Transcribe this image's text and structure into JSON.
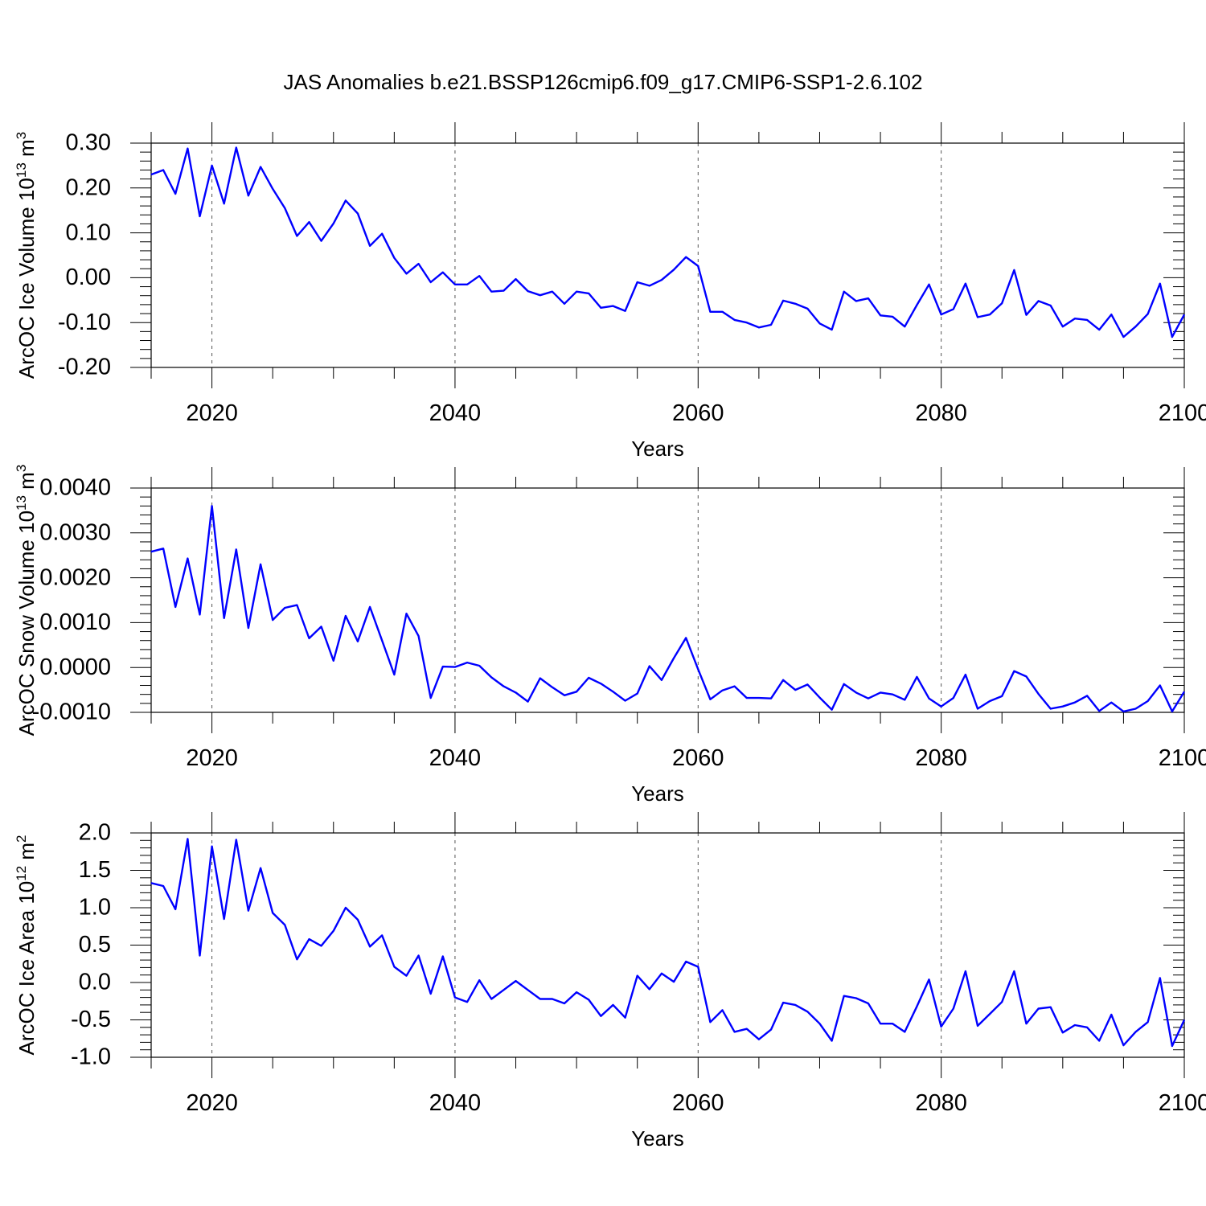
{
  "title": "JAS Anomalies b.e21.BSSP126cmip6.f09_g17.CMIP6-SSP1-2.6.102",
  "chart_data": [
    {
      "type": "line",
      "xlabel": "Years",
      "ylabel_main": "ArcOC Ice Volume 10",
      "ylabel_exp": "13",
      "ylabel_unit": " m",
      "ylabel_unit_exp": "3",
      "xlim": [
        2015,
        2100
      ],
      "ylim": [
        -0.2,
        0.3
      ],
      "xticks": [
        "2020",
        "2040",
        "2060",
        "2080",
        "2100"
      ],
      "yticks": [
        "-0.20",
        "-0.10",
        "0.00",
        "0.10",
        "0.20",
        "0.30"
      ],
      "color": "#0000ff",
      "x_start": 2015,
      "values": [
        0.23,
        0.24,
        0.187,
        0.288,
        0.137,
        0.25,
        0.165,
        0.29,
        0.183,
        0.247,
        0.198,
        0.155,
        0.093,
        0.124,
        0.082,
        0.121,
        0.172,
        0.143,
        0.071,
        0.098,
        0.044,
        0.009,
        0.031,
        -0.01,
        0.012,
        -0.015,
        -0.015,
        0.004,
        -0.031,
        -0.029,
        -0.003,
        -0.03,
        -0.039,
        -0.031,
        -0.058,
        -0.031,
        -0.035,
        -0.067,
        -0.063,
        -0.074,
        -0.01,
        -0.018,
        -0.005,
        0.018,
        0.046,
        0.026,
        -0.076,
        -0.076,
        -0.094,
        -0.1,
        -0.111,
        -0.105,
        -0.051,
        -0.058,
        -0.069,
        -0.102,
        -0.116,
        -0.031,
        -0.052,
        -0.046,
        -0.084,
        -0.087,
        -0.109,
        -0.061,
        -0.015,
        -0.082,
        -0.07,
        -0.013,
        -0.088,
        -0.082,
        -0.057,
        0.017,
        -0.083,
        -0.052,
        -0.062,
        -0.109,
        -0.091,
        -0.094,
        -0.116,
        -0.082,
        -0.132,
        -0.109,
        -0.081,
        -0.013,
        -0.132,
        -0.082
      ]
    },
    {
      "type": "line",
      "xlabel": "Years",
      "ylabel_main": "ArcOC Snow Volume 10",
      "ylabel_exp": "13",
      "ylabel_unit": " m",
      "ylabel_unit_exp": "3",
      "xlim": [
        2015,
        2100
      ],
      "ylim": [
        -0.001,
        0.004
      ],
      "xticks": [
        "2020",
        "2040",
        "2060",
        "2080",
        "2100"
      ],
      "yticks": [
        "-0.0010",
        "0.0000",
        "0.0010",
        "0.0020",
        "0.0030",
        "0.0040"
      ],
      "color": "#0000ff",
      "x_start": 2015,
      "values": [
        0.00258,
        0.00265,
        0.00135,
        0.00243,
        0.00118,
        0.0036,
        0.0011,
        0.00263,
        0.00088,
        0.0023,
        0.00106,
        0.00133,
        0.00139,
        0.00065,
        0.00091,
        0.00015,
        0.00115,
        0.00058,
        0.00135,
        0.0006,
        -0.00016,
        0.0012,
        0.0007,
        -0.00068,
        2e-05,
        1e-05,
        0.00011,
        4e-05,
        -0.00022,
        -0.00042,
        -0.00056,
        -0.00076,
        -0.00024,
        -0.00044,
        -0.00062,
        -0.00054,
        -0.00023,
        -0.00036,
        -0.00054,
        -0.00074,
        -0.00058,
        3e-05,
        -0.00028,
        0.00021,
        0.00066,
        -4e-05,
        -0.00071,
        -0.00051,
        -0.00042,
        -0.00068,
        -0.00068,
        -0.00069,
        -0.00028,
        -0.0005,
        -0.00038,
        -0.00067,
        -0.00094,
        -0.00037,
        -0.00056,
        -0.00069,
        -0.00056,
        -0.0006,
        -0.00072,
        -0.00021,
        -0.00069,
        -0.00087,
        -0.00068,
        -0.00016,
        -0.00092,
        -0.00075,
        -0.00064,
        -8e-05,
        -0.0002,
        -0.00059,
        -0.00092,
        -0.00087,
        -0.00078,
        -0.00063,
        -0.00097,
        -0.00078,
        -0.00098,
        -0.00092,
        -0.00075,
        -0.0004,
        -0.00098,
        -0.00054
      ]
    },
    {
      "type": "line",
      "xlabel": "Years",
      "ylabel_main": "ArcOC Ice Area 10",
      "ylabel_exp": "12",
      "ylabel_unit": " m",
      "ylabel_unit_exp": "2",
      "xlim": [
        2015,
        2100
      ],
      "ylim": [
        -1.0,
        2.0
      ],
      "xticks": [
        "2020",
        "2040",
        "2060",
        "2080",
        "2100"
      ],
      "yticks": [
        "-1.0",
        "-0.5",
        "0.0",
        "0.5",
        "1.0",
        "1.5",
        "2.0"
      ],
      "color": "#0000ff",
      "x_start": 2015,
      "values": [
        1.33,
        1.29,
        0.98,
        1.92,
        0.36,
        1.82,
        0.85,
        1.91,
        0.96,
        1.53,
        0.93,
        0.77,
        0.31,
        0.58,
        0.49,
        0.69,
        1.0,
        0.84,
        0.48,
        0.63,
        0.21,
        0.09,
        0.36,
        -0.15,
        0.35,
        -0.2,
        -0.26,
        0.03,
        -0.22,
        -0.1,
        0.02,
        -0.1,
        -0.22,
        -0.22,
        -0.28,
        -0.13,
        -0.23,
        -0.45,
        -0.3,
        -0.47,
        0.09,
        -0.09,
        0.12,
        0.01,
        0.28,
        0.21,
        -0.53,
        -0.37,
        -0.66,
        -0.62,
        -0.76,
        -0.63,
        -0.27,
        -0.3,
        -0.39,
        -0.55,
        -0.78,
        -0.18,
        -0.21,
        -0.28,
        -0.55,
        -0.55,
        -0.66,
        -0.32,
        0.04,
        -0.59,
        -0.35,
        0.15,
        -0.58,
        -0.42,
        -0.26,
        0.15,
        -0.55,
        -0.35,
        -0.33,
        -0.67,
        -0.57,
        -0.6,
        -0.78,
        -0.43,
        -0.84,
        -0.66,
        -0.53,
        0.06,
        -0.85,
        -0.5
      ]
    }
  ]
}
